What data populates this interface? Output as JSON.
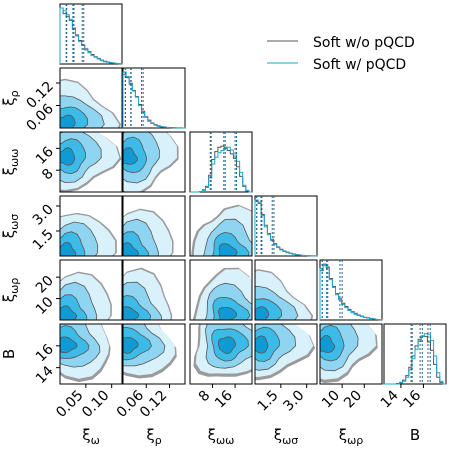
{
  "chart_data": {
    "type": "corner",
    "legend": {
      "placement": "top-right",
      "entries": [
        {
          "label": "Soft w/o pQCD",
          "color": "#555555"
        },
        {
          "label": "Soft w/ pQCD",
          "color": "#1aa7d6"
        }
      ]
    },
    "colors": {
      "without_pqcd_line": "#555555",
      "without_pqcd_fill": "#9a9a9a",
      "with_pqcd_line": "#1aa7d6",
      "with_pqcd_fill_levels": [
        "#d9f1fb",
        "#8fd4f1",
        "#3dbbe8",
        "#0f9ad4"
      ],
      "quantile_line": "#0b6aa2"
    },
    "parameters": [
      {
        "key": "xi_omega",
        "label": "ξ_ω",
        "range": [
          0.0,
          0.12
        ],
        "ticks": [
          0.05,
          0.1
        ],
        "tick_labels": [
          "0.05",
          "0.10"
        ],
        "quantiles_with": [
          0.012,
          0.025,
          0.043
        ],
        "quantiles_without": [
          0.013,
          0.027,
          0.046
        ]
      },
      {
        "key": "xi_rho",
        "label": "ξ_ρ",
        "range": [
          0.0,
          0.16
        ],
        "ticks": [
          0.06,
          0.12
        ],
        "tick_labels": [
          "0.06",
          "0.12"
        ],
        "quantiles_with": [
          0.006,
          0.02,
          0.048
        ],
        "quantiles_without": [
          0.006,
          0.021,
          0.052
        ]
      },
      {
        "key": "xi_omega_omega",
        "label": "ξ_ωω",
        "range": [
          0.0,
          22.0
        ],
        "ticks": [
          8,
          16
        ],
        "tick_labels": [
          "8",
          "16"
        ],
        "quantiles_with": [
          7.5,
          12.5,
          16.5
        ],
        "quantiles_without": [
          7.2,
          12.0,
          16.0
        ]
      },
      {
        "key": "xi_omega_sigma",
        "label": "ξ_ωσ",
        "range": [
          0.0,
          3.6
        ],
        "ticks": [
          1.5,
          3.0
        ],
        "tick_labels": [
          "1.5",
          "3.0"
        ],
        "quantiles_with": [
          0.1,
          0.35,
          1.0
        ],
        "quantiles_without": [
          0.1,
          0.4,
          1.1
        ]
      },
      {
        "key": "xi_omega_rho",
        "label": "ξ_ωρ",
        "range": [
          0.0,
          28.0
        ],
        "ticks": [
          10,
          20
        ],
        "tick_labels": [
          "10",
          "20"
        ],
        "quantiles_with": [
          1.0,
          3.0,
          9.0
        ],
        "quantiles_without": [
          1.0,
          3.5,
          10.0
        ]
      },
      {
        "key": "B",
        "label": "B",
        "range": [
          12.5,
          18.0
        ],
        "ticks": [
          14,
          16
        ],
        "tick_labels": [
          "14",
          "16"
        ],
        "quantiles_with": [
          15.0,
          15.9,
          16.6
        ],
        "quantiles_without": [
          14.9,
          15.7,
          16.4
        ]
      }
    ],
    "histograms": {
      "xi_omega": {
        "with": [
          1.0,
          0.95,
          0.88,
          0.8,
          0.62,
          0.5,
          0.4,
          0.33,
          0.25,
          0.2,
          0.15,
          0.12,
          0.09,
          0.06,
          0.04,
          0.03,
          0.02,
          0.015,
          0.01,
          0.005
        ],
        "without": [
          1.0,
          0.9,
          0.85,
          0.78,
          0.64,
          0.52,
          0.42,
          0.34,
          0.27,
          0.22,
          0.17,
          0.13,
          0.1,
          0.07,
          0.05,
          0.035,
          0.025,
          0.015,
          0.01,
          0.005
        ]
      },
      "xi_rho": {
        "with": [
          1.0,
          0.92,
          0.78,
          0.66,
          0.55,
          0.4,
          0.28,
          0.19,
          0.12,
          0.08,
          0.05,
          0.03,
          0.02,
          0.015,
          0.01,
          0.006,
          0.004,
          0.003,
          0.002,
          0.001
        ],
        "without": [
          0.95,
          0.9,
          0.8,
          0.67,
          0.56,
          0.42,
          0.3,
          0.2,
          0.14,
          0.09,
          0.06,
          0.04,
          0.025,
          0.018,
          0.012,
          0.008,
          0.005,
          0.003,
          0.002,
          0.001
        ]
      },
      "xi_omega_omega": {
        "with": [
          0.0,
          0.0,
          0.0,
          0.01,
          0.03,
          0.08,
          0.25,
          0.5,
          0.62,
          0.7,
          0.74,
          0.78,
          0.8,
          0.75,
          0.66,
          0.55,
          0.35,
          0.12,
          0.03,
          0.0
        ],
        "without": [
          0.0,
          0.0,
          0.0,
          0.01,
          0.04,
          0.1,
          0.3,
          0.58,
          0.72,
          0.8,
          0.82,
          0.8,
          0.74,
          0.68,
          0.6,
          0.45,
          0.28,
          0.1,
          0.02,
          0.0
        ]
      },
      "xi_omega_sigma": {
        "with": [
          1.0,
          0.96,
          0.72,
          0.52,
          0.38,
          0.28,
          0.2,
          0.15,
          0.11,
          0.08,
          0.06,
          0.045,
          0.03,
          0.02,
          0.015,
          0.01,
          0.008,
          0.005,
          0.003,
          0.002
        ],
        "without": [
          0.98,
          0.94,
          0.74,
          0.55,
          0.4,
          0.3,
          0.22,
          0.16,
          0.12,
          0.09,
          0.07,
          0.05,
          0.035,
          0.025,
          0.018,
          0.012,
          0.008,
          0.005,
          0.003,
          0.002
        ]
      },
      "xi_omega_rho": {
        "with": [
          0.92,
          1.0,
          0.95,
          0.72,
          0.58,
          0.45,
          0.36,
          0.28,
          0.22,
          0.17,
          0.13,
          0.1,
          0.08,
          0.06,
          0.045,
          0.035,
          0.025,
          0.015,
          0.01,
          0.005
        ],
        "without": [
          0.88,
          0.98,
          0.94,
          0.74,
          0.6,
          0.47,
          0.38,
          0.3,
          0.24,
          0.19,
          0.15,
          0.12,
          0.09,
          0.07,
          0.05,
          0.04,
          0.03,
          0.02,
          0.01,
          0.005
        ]
      },
      "B": {
        "with": [
          0.0,
          0.0,
          0.0,
          0.0,
          0.0,
          0.02,
          0.05,
          0.12,
          0.25,
          0.45,
          0.62,
          0.76,
          0.85,
          0.9,
          0.88,
          0.78,
          0.5,
          0.2,
          0.05,
          0.0
        ],
        "without": [
          0.0,
          0.0,
          0.0,
          0.0,
          0.01,
          0.03,
          0.07,
          0.15,
          0.3,
          0.5,
          0.68,
          0.8,
          0.86,
          0.85,
          0.75,
          0.6,
          0.35,
          0.12,
          0.03,
          0.0
        ]
      }
    },
    "pair_contours": {
      "credible_levels": [
        0.39,
        0.86,
        0.99
      ],
      "description_values": {
        "peak_with": {
          "xi_omega": 0.01,
          "xi_rho": 0.01,
          "xi_omega_omega": 12.5,
          "xi_omega_sigma": 0.2,
          "xi_omega_rho": 2.0,
          "B": 16.0
        },
        "peak_without": {
          "xi_omega": 0.01,
          "xi_rho": 0.01,
          "xi_omega_omega": 12.0,
          "xi_omega_sigma": 0.2,
          "xi_omega_rho": 2.0,
          "B": 15.8
        }
      }
    }
  }
}
